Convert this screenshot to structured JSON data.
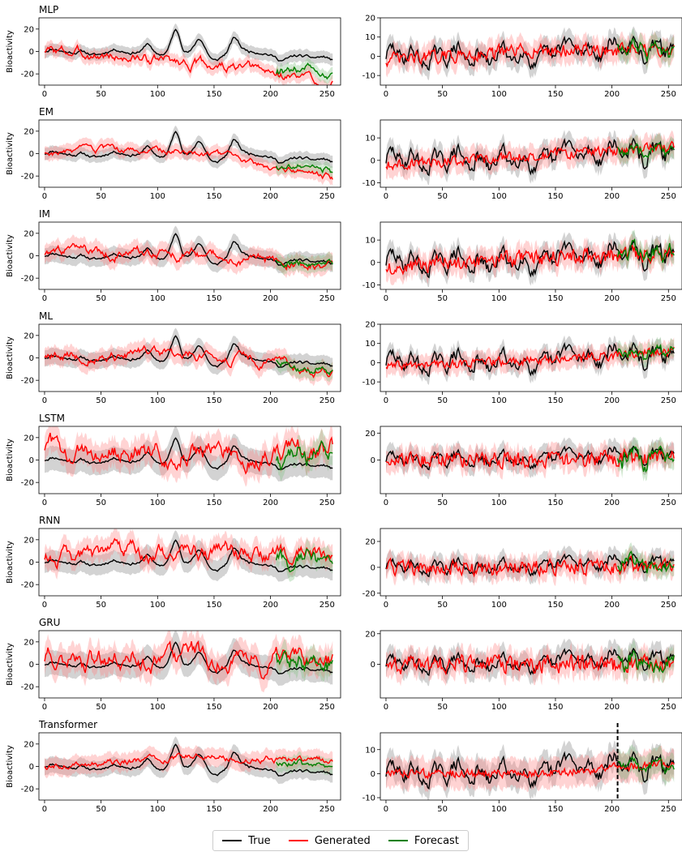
{
  "chart_data": {
    "type": "line",
    "ylabel": "Bioactivity",
    "xticks": [
      0,
      50,
      100,
      150,
      200,
      250
    ],
    "xlim": [
      -5,
      262
    ],
    "series_names": [
      "True",
      "Generated",
      "Forecast"
    ],
    "colors": {
      "true": "#000000",
      "generated": "#ff0000",
      "forecast": "#008000",
      "true_band": "#808080",
      "generated_band": "#ff8080",
      "forecast_band": "#80c080"
    },
    "forecast_start": 205,
    "models": [
      {
        "name": "MLP",
        "left": {
          "ylim": [
            -30,
            30
          ],
          "yticks": [
            -20,
            0,
            20
          ],
          "gen_trend": [
            1,
            -10,
            -27
          ],
          "gen_wiggle": 3,
          "band": 6
        },
        "right": {
          "ylim": [
            -15,
            20
          ],
          "yticks": [
            -10,
            0,
            10,
            20
          ],
          "gen_trend": [
            -2,
            3,
            3
          ],
          "gen_wiggle": 3,
          "band": 6
        }
      },
      {
        "name": "EM",
        "left": {
          "ylim": [
            -30,
            30
          ],
          "yticks": [
            -20,
            0,
            20
          ],
          "gen_trend": [
            1,
            3,
            -22
          ],
          "gen_wiggle": 2,
          "band": 6
        },
        "right": {
          "ylim": [
            -12,
            18
          ],
          "yticks": [
            -10,
            0,
            10
          ],
          "gen_trend": [
            -2,
            2,
            6
          ],
          "gen_wiggle": 2,
          "band": 5
        }
      },
      {
        "name": "IM",
        "left": {
          "ylim": [
            -30,
            30
          ],
          "yticks": [
            -20,
            0,
            20
          ],
          "gen_trend": [
            2,
            2,
            -10
          ],
          "gen_wiggle": 3,
          "band": 8
        },
        "right": {
          "ylim": [
            -12,
            18
          ],
          "yticks": [
            -10,
            0,
            10
          ],
          "gen_trend": [
            -2,
            2,
            4
          ],
          "gen_wiggle": 3,
          "band": 5
        }
      },
      {
        "name": "ML",
        "left": {
          "ylim": [
            -30,
            30
          ],
          "yticks": [
            -20,
            0,
            20
          ],
          "gen_trend": [
            1,
            4,
            -12
          ],
          "gen_wiggle": 3,
          "band": 8
        },
        "right": {
          "ylim": [
            -15,
            20
          ],
          "yticks": [
            -10,
            0,
            10,
            20
          ],
          "gen_trend": [
            -2,
            1,
            6
          ],
          "gen_wiggle": 2,
          "band": 5
        }
      },
      {
        "name": "LSTM",
        "left": {
          "ylim": [
            -30,
            30
          ],
          "yticks": [
            -20,
            0,
            20
          ],
          "gen_trend": [
            10,
            8,
            10
          ],
          "gen_wiggle": 6,
          "band": 12
        },
        "right": {
          "ylim": [
            -25,
            25
          ],
          "yticks": [
            0,
            20
          ],
          "gen_trend": [
            0,
            0,
            2
          ],
          "gen_wiggle": 5,
          "band": 8
        }
      },
      {
        "name": "RNN",
        "left": {
          "ylim": [
            -30,
            30
          ],
          "yticks": [
            -20,
            0,
            20
          ],
          "gen_trend": [
            3,
            8,
            4
          ],
          "gen_wiggle": 5,
          "band": 10
        },
        "right": {
          "ylim": [
            -22,
            30
          ],
          "yticks": [
            -20,
            0,
            20
          ],
          "gen_trend": [
            0,
            0,
            1
          ],
          "gen_wiggle": 5,
          "band": 8
        }
      },
      {
        "name": "GRU",
        "left": {
          "ylim": [
            -30,
            30
          ],
          "yticks": [
            -20,
            0,
            20
          ],
          "gen_trend": [
            3,
            8,
            2
          ],
          "gen_wiggle": 6,
          "band": 12
        },
        "right": {
          "ylim": [
            -22,
            22
          ],
          "yticks": [
            0,
            20
          ],
          "gen_trend": [
            0,
            0,
            0
          ],
          "gen_wiggle": 5,
          "band": 8
        }
      },
      {
        "name": "Transformer",
        "left": {
          "ylim": [
            -30,
            30
          ],
          "yticks": [
            -20,
            0,
            20
          ],
          "gen_trend": [
            0,
            9,
            4
          ],
          "gen_wiggle": 2,
          "band": 8
        },
        "right": {
          "ylim": [
            -11,
            17
          ],
          "yticks": [
            -10,
            0,
            10
          ],
          "gen_trend": [
            0,
            0,
            4
          ],
          "gen_wiggle": 1.5,
          "band": 6
        }
      }
    ]
  },
  "legend": {
    "true": "True",
    "generated": "Generated",
    "forecast": "Forecast"
  }
}
